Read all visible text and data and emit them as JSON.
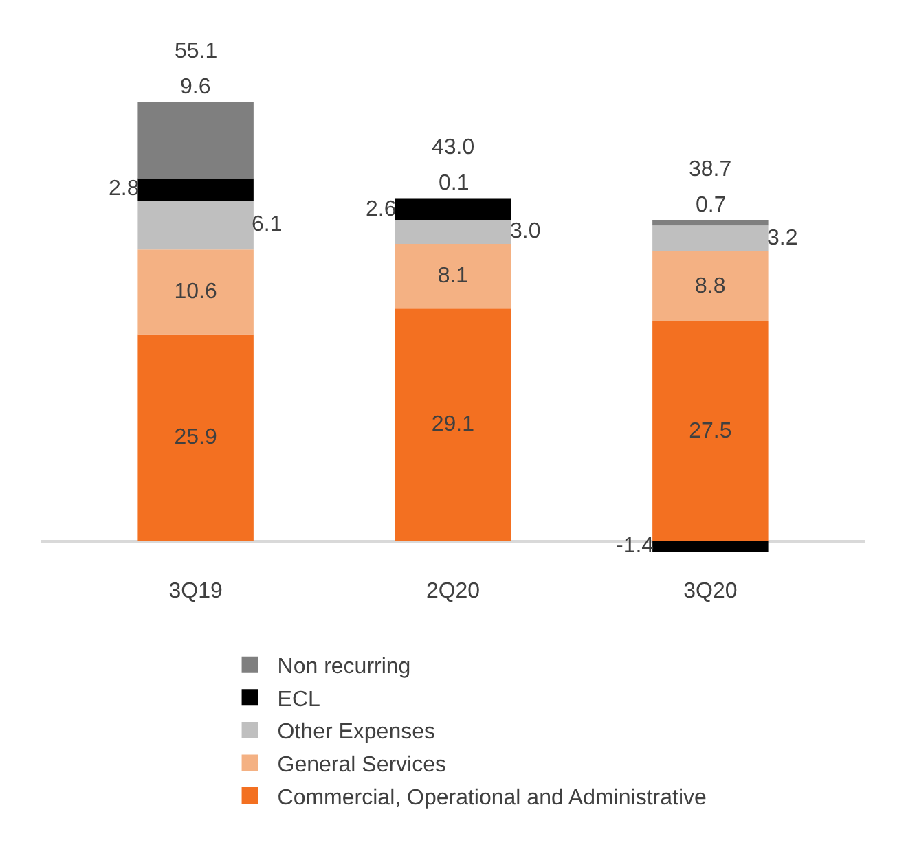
{
  "chart_data": {
    "type": "bar",
    "stacked": true,
    "categories": [
      "3Q19",
      "2Q20",
      "3Q20"
    ],
    "series": [
      {
        "name": "Commercial, Operational and Administrative",
        "color": "#f37021",
        "values": [
          25.9,
          29.1,
          27.5
        ]
      },
      {
        "name": "General Services",
        "color": "#f4b183",
        "values": [
          10.6,
          8.1,
          8.8
        ]
      },
      {
        "name": "Other Expenses",
        "color": "#bfbfbf",
        "values": [
          6.1,
          3.0,
          3.2
        ],
        "value_labels": [
          "6.1",
          "3.0",
          "3.2"
        ]
      },
      {
        "name": "ECL",
        "color": "#000000",
        "values": [
          2.8,
          2.6,
          -1.4
        ]
      },
      {
        "name": "Non recurring",
        "color": "#7f7f7f",
        "values": [
          9.6,
          0.1,
          0.7
        ]
      }
    ],
    "data_labels": true,
    "totals": [
      "55.1",
      "43.0",
      "38.7"
    ],
    "legend": "bottom",
    "tick_labels": "x"
  }
}
